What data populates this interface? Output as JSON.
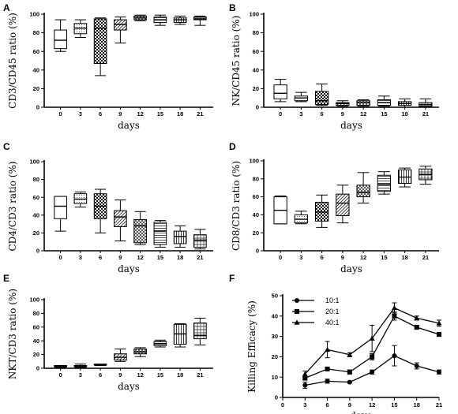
{
  "chart_data": [
    {
      "panel": "A",
      "type": "box",
      "ylabel": "CD3/CD45 ratio (%)",
      "xlabel": "days",
      "categories": [
        "0",
        "3",
        "6",
        "9",
        "12",
        "15",
        "18",
        "21"
      ],
      "ylim": [
        0,
        100
      ],
      "yticks": [
        0,
        20,
        40,
        60,
        80,
        100
      ],
      "boxes": [
        {
          "min": 60,
          "q1": 63,
          "median": 72,
          "q3": 83,
          "max": 94
        },
        {
          "min": 75,
          "q1": 79,
          "median": 85,
          "q3": 90,
          "max": 94
        },
        {
          "min": 34,
          "q1": 47,
          "median": 85,
          "q3": 95,
          "max": 96
        },
        {
          "min": 69,
          "q1": 83,
          "median": 89,
          "q3": 94,
          "max": 97
        },
        {
          "min": 93,
          "q1": 94,
          "median": 96,
          "q3": 98,
          "max": 99
        },
        {
          "min": 88,
          "q1": 91,
          "median": 94,
          "q3": 97,
          "max": 99
        },
        {
          "min": 89,
          "q1": 91,
          "median": 94,
          "q3": 96,
          "max": 98
        },
        {
          "min": 88,
          "q1": 94,
          "median": 95,
          "q3": 97,
          "max": 98
        }
      ]
    },
    {
      "panel": "B",
      "type": "box",
      "ylabel": "NK/CD45 ratio (%)",
      "xlabel": "days",
      "categories": [
        "0",
        "3",
        "6",
        "9",
        "12",
        "15",
        "18",
        "21"
      ],
      "ylim": [
        0,
        100
      ],
      "yticks": [
        0,
        20,
        40,
        60,
        80,
        100
      ],
      "boxes": [
        {
          "min": 6,
          "q1": 9,
          "median": 15,
          "q3": 24,
          "max": 30
        },
        {
          "min": 6,
          "q1": 7,
          "median": 10,
          "q3": 12,
          "max": 16
        },
        {
          "min": 2,
          "q1": 3,
          "median": 7,
          "q3": 17,
          "max": 25
        },
        {
          "min": 1,
          "q1": 2,
          "median": 4,
          "q3": 5,
          "max": 7
        },
        {
          "min": 1,
          "q1": 2,
          "median": 5,
          "q3": 7,
          "max": 8
        },
        {
          "min": 1,
          "q1": 2,
          "median": 5,
          "q3": 8,
          "max": 12
        },
        {
          "min": 0,
          "q1": 2,
          "median": 4,
          "q3": 6,
          "max": 9
        },
        {
          "min": 0,
          "q1": 1,
          "median": 3,
          "q3": 5,
          "max": 9
        }
      ]
    },
    {
      "panel": "C",
      "type": "box",
      "ylabel": "CD4/CD3 ratio (%)",
      "xlabel": "days",
      "categories": [
        "0",
        "3",
        "6",
        "9",
        "12",
        "15",
        "18",
        "21"
      ],
      "ylim": [
        0,
        100
      ],
      "yticks": [
        0,
        20,
        40,
        60,
        80,
        100
      ],
      "boxes": [
        {
          "min": 22,
          "q1": 36,
          "median": 50,
          "q3": 61,
          "max": 61
        },
        {
          "min": 49,
          "q1": 53,
          "median": 58,
          "q3": 64,
          "max": 66
        },
        {
          "min": 20,
          "q1": 36,
          "median": 50,
          "q3": 64,
          "max": 69
        },
        {
          "min": 11,
          "q1": 27,
          "median": 38,
          "q3": 45,
          "max": 57
        },
        {
          "min": 7,
          "q1": 9,
          "median": 28,
          "q3": 35,
          "max": 44
        },
        {
          "min": 4,
          "q1": 7,
          "median": 22,
          "q3": 32,
          "max": 34
        },
        {
          "min": 4,
          "q1": 8,
          "median": 16,
          "q3": 22,
          "max": 28
        },
        {
          "min": 2,
          "q1": 4,
          "median": 12,
          "q3": 18,
          "max": 24
        }
      ]
    },
    {
      "panel": "D",
      "type": "box",
      "ylabel": "CD8/CD3 ratio (%)",
      "xlabel": "days",
      "categories": [
        "0",
        "3",
        "6",
        "9",
        "12",
        "15",
        "18",
        "21"
      ],
      "ylim": [
        0,
        100
      ],
      "yticks": [
        0,
        20,
        40,
        60,
        80,
        100
      ],
      "boxes": [
        {
          "min": 30,
          "q1": 30,
          "median": 45,
          "q3": 60,
          "max": 61
        },
        {
          "min": 30,
          "q1": 31,
          "median": 35,
          "q3": 40,
          "max": 44
        },
        {
          "min": 26,
          "q1": 33,
          "median": 43,
          "q3": 54,
          "max": 62
        },
        {
          "min": 31,
          "q1": 39,
          "median": 53,
          "q3": 63,
          "max": 73
        },
        {
          "min": 53,
          "q1": 60,
          "median": 65,
          "q3": 73,
          "max": 87
        },
        {
          "min": 63,
          "q1": 66,
          "median": 74,
          "q3": 84,
          "max": 88
        },
        {
          "min": 71,
          "q1": 75,
          "median": 82,
          "q3": 90,
          "max": 92
        },
        {
          "min": 74,
          "q1": 79,
          "median": 85,
          "q3": 91,
          "max": 94
        }
      ]
    },
    {
      "panel": "E",
      "type": "box",
      "ylabel": "NKT/CD3 ratio (%)",
      "xlabel": "days",
      "categories": [
        "0",
        "3",
        "6",
        "9",
        "12",
        "15",
        "18",
        "21"
      ],
      "ylim": [
        0,
        100
      ],
      "yticks": [
        0,
        20,
        40,
        60,
        80,
        100
      ],
      "boxes": [
        {
          "min": 1,
          "q1": 2,
          "median": 3,
          "q3": 4,
          "max": 4
        },
        {
          "min": 1,
          "q1": 2,
          "median": 3,
          "q3": 4,
          "max": 6
        },
        {
          "min": 4,
          "q1": 4.5,
          "median": 5,
          "q3": 6,
          "max": 6
        },
        {
          "min": 10,
          "q1": 12,
          "median": 16,
          "q3": 21,
          "max": 28
        },
        {
          "min": 17,
          "q1": 21,
          "median": 24,
          "q3": 28,
          "max": 30
        },
        {
          "min": 31,
          "q1": 33,
          "median": 36,
          "q3": 39,
          "max": 41
        },
        {
          "min": 31,
          "q1": 35,
          "median": 50,
          "q3": 64,
          "max": 65
        },
        {
          "min": 34,
          "q1": 43,
          "median": 48,
          "q3": 66,
          "max": 73
        }
      ]
    },
    {
      "panel": "F",
      "type": "line",
      "ylabel": "Killing Efficacy (%)",
      "xlabel": "days",
      "x": [
        3,
        6,
        9,
        12,
        15,
        18,
        21
      ],
      "xlim": [
        0,
        21
      ],
      "xticks": [
        0,
        3,
        6,
        9,
        12,
        15,
        18,
        21
      ],
      "ylim": [
        0,
        50
      ],
      "yticks": [
        0,
        10,
        20,
        30,
        40,
        50
      ],
      "legend_position": "top-left",
      "series": [
        {
          "name": "10:1",
          "marker": "circle",
          "values": [
            6,
            8,
            7.5,
            12.5,
            20.5,
            15.5,
            12.5
          ],
          "errors": [
            1.5,
            1,
            0.5,
            1,
            5,
            1.5,
            1
          ]
        },
        {
          "name": "20:1",
          "marker": "square",
          "values": [
            9.5,
            14,
            12.5,
            20,
            40,
            34.5,
            31
          ],
          "errors": [
            1,
            0.5,
            1,
            1.5,
            2,
            1,
            1
          ]
        },
        {
          "name": "40:1",
          "marker": "triangle",
          "values": [
            11.5,
            23.5,
            21,
            29,
            44,
            39,
            36.5
          ],
          "errors": [
            1.5,
            4,
            1,
            6.5,
            2.5,
            1,
            1.5
          ]
        }
      ]
    }
  ]
}
